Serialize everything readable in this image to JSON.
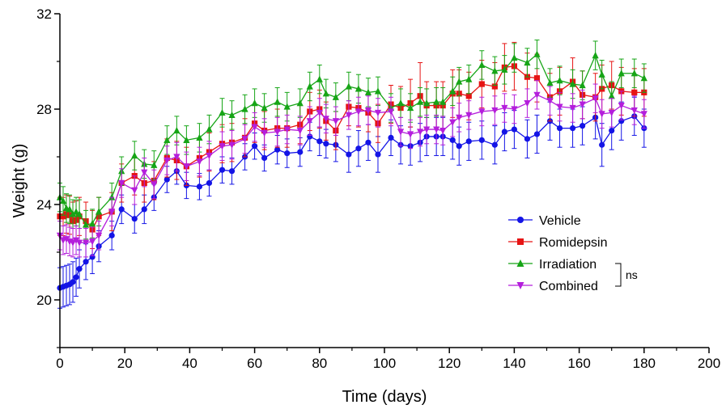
{
  "chart_data": {
    "type": "line",
    "xlabel": "Time (days)",
    "ylabel": "Weight (g)",
    "xlim": [
      0,
      200
    ],
    "ylim": [
      18,
      32
    ],
    "xticks": [
      0,
      20,
      40,
      60,
      80,
      100,
      120,
      140,
      160,
      180,
      200
    ],
    "yticks": [
      20,
      24,
      28,
      32
    ],
    "grid": false,
    "legend_position": "right",
    "annotation": "ns",
    "series": [
      {
        "name": "Vehicle",
        "color": "#1414e6",
        "marker": "circle",
        "x": [
          0,
          1,
          2,
          3,
          4,
          5,
          6,
          8,
          10,
          12,
          16,
          19,
          23,
          26,
          29,
          33,
          36,
          39,
          43,
          46,
          50,
          53,
          57,
          60,
          63,
          67,
          70,
          74,
          77,
          80,
          82,
          85,
          89,
          92,
          95,
          98,
          102,
          105,
          108,
          111,
          113,
          116,
          118,
          121,
          123,
          126,
          130,
          134,
          137,
          140,
          144,
          147,
          151,
          154,
          158,
          161,
          165,
          167,
          170,
          173,
          177,
          180
        ],
        "y": [
          20.5,
          20.55,
          20.6,
          20.65,
          20.75,
          20.95,
          21.3,
          21.6,
          21.8,
          22.25,
          22.7,
          23.8,
          23.4,
          23.8,
          24.3,
          25.05,
          25.4,
          24.8,
          24.75,
          24.9,
          25.45,
          25.4,
          26.0,
          26.45,
          25.95,
          26.3,
          26.15,
          26.2,
          26.85,
          26.65,
          26.55,
          26.5,
          26.1,
          26.35,
          26.6,
          26.1,
          26.8,
          26.5,
          26.45,
          26.6,
          26.85,
          26.85,
          26.85,
          26.7,
          26.45,
          26.65,
          26.7,
          26.5,
          27.05,
          27.15,
          26.75,
          26.95,
          27.5,
          27.2,
          27.2,
          27.3,
          27.65,
          26.5,
          27.1,
          27.5,
          27.7,
          27.2
        ],
        "err": [
          0.85,
          0.85,
          0.85,
          0.85,
          0.85,
          0.8,
          0.8,
          0.75,
          0.7,
          0.65,
          0.6,
          0.6,
          0.6,
          0.6,
          0.55,
          0.55,
          0.55,
          0.55,
          0.55,
          0.55,
          0.55,
          0.55,
          0.55,
          0.55,
          0.55,
          0.6,
          0.6,
          0.6,
          0.6,
          0.6,
          0.6,
          0.7,
          0.75,
          0.75,
          0.75,
          0.75,
          0.75,
          0.8,
          0.8,
          0.8,
          0.8,
          0.8,
          0.8,
          0.8,
          0.8,
          0.8,
          0.8,
          0.8,
          0.8,
          0.8,
          0.8,
          0.8,
          0.8,
          0.8,
          0.8,
          0.8,
          0.9,
          0.9,
          0.8,
          0.8,
          0.8,
          0.8
        ]
      },
      {
        "name": "Romidepsin",
        "color": "#e61414",
        "marker": "square",
        "x": [
          0,
          1,
          2,
          3,
          4,
          5,
          6,
          8,
          10,
          12,
          16,
          19,
          23,
          26,
          29,
          33,
          36,
          39,
          43,
          46,
          50,
          53,
          57,
          60,
          63,
          67,
          70,
          74,
          77,
          80,
          82,
          85,
          89,
          92,
          95,
          98,
          102,
          105,
          108,
          111,
          113,
          116,
          118,
          121,
          123,
          126,
          130,
          134,
          137,
          140,
          144,
          147,
          151,
          154,
          158,
          161,
          165,
          167,
          170,
          173,
          177,
          180
        ],
        "y": [
          23.5,
          23.5,
          23.6,
          23.55,
          23.3,
          23.35,
          23.5,
          23.3,
          22.95,
          23.5,
          23.7,
          24.9,
          25.2,
          24.9,
          25.0,
          25.95,
          25.85,
          25.6,
          25.95,
          26.2,
          26.55,
          26.6,
          26.8,
          27.4,
          27.1,
          27.2,
          27.2,
          27.35,
          27.9,
          28.0,
          27.5,
          27.1,
          28.1,
          28.05,
          27.85,
          27.4,
          28.2,
          28.05,
          28.25,
          28.55,
          28.15,
          28.15,
          28.15,
          28.65,
          28.65,
          28.55,
          29.05,
          28.95,
          29.75,
          29.8,
          29.35,
          29.3,
          28.5,
          28.75,
          29.15,
          28.6,
          28.5,
          28.85,
          29.0,
          28.75,
          28.7,
          28.7
        ],
        "err": [
          0.8,
          0.8,
          0.8,
          0.8,
          0.8,
          0.8,
          0.8,
          0.8,
          0.8,
          0.8,
          0.8,
          0.8,
          0.8,
          0.8,
          0.8,
          0.8,
          0.8,
          0.8,
          0.8,
          0.8,
          0.8,
          0.8,
          0.8,
          0.8,
          0.8,
          0.8,
          0.8,
          0.8,
          0.8,
          0.8,
          0.8,
          0.8,
          0.8,
          0.8,
          0.8,
          0.8,
          0.8,
          0.9,
          1.0,
          1.4,
          1.0,
          1.0,
          1.0,
          1.0,
          1.0,
          1.0,
          1.0,
          1.0,
          1.0,
          1.0,
          1.0,
          1.0,
          1.0,
          1.0,
          1.0,
          1.0,
          1.0,
          1.0,
          1.0,
          1.0,
          1.0,
          1.0
        ]
      },
      {
        "name": "Irradiation",
        "color": "#16a516",
        "marker": "triangle-up",
        "x": [
          0,
          1,
          2,
          3,
          4,
          5,
          6,
          8,
          10,
          12,
          16,
          19,
          23,
          26,
          29,
          33,
          36,
          39,
          43,
          46,
          50,
          53,
          57,
          60,
          63,
          67,
          70,
          74,
          77,
          80,
          82,
          85,
          89,
          92,
          95,
          98,
          102,
          105,
          108,
          111,
          113,
          116,
          118,
          121,
          123,
          126,
          130,
          134,
          137,
          140,
          144,
          147,
          151,
          154,
          158,
          161,
          165,
          167,
          170,
          173,
          177,
          180
        ],
        "y": [
          24.3,
          24.15,
          23.85,
          23.8,
          23.6,
          23.7,
          23.6,
          23.15,
          23.2,
          23.7,
          24.3,
          25.4,
          26.05,
          25.7,
          25.65,
          26.7,
          27.1,
          26.7,
          26.8,
          27.15,
          27.85,
          27.75,
          28.0,
          28.25,
          28.05,
          28.3,
          28.1,
          28.25,
          28.95,
          29.25,
          28.65,
          28.5,
          28.95,
          28.85,
          28.7,
          28.75,
          28.05,
          28.25,
          28.05,
          28.3,
          28.25,
          28.3,
          28.3,
          28.75,
          29.15,
          29.25,
          29.85,
          29.6,
          29.65,
          30.15,
          29.95,
          30.3,
          29.1,
          29.2,
          29.05,
          29.0,
          30.25,
          29.45,
          28.55,
          29.5,
          29.5,
          29.3
        ]
      },
      {
        "name": "Combined",
        "color": "#b41edc",
        "marker": "triangle-down",
        "x": [
          0,
          1,
          2,
          3,
          4,
          5,
          6,
          8,
          10,
          12,
          16,
          19,
          23,
          26,
          29,
          33,
          36,
          39,
          43,
          46,
          50,
          53,
          57,
          60,
          63,
          67,
          70,
          74,
          77,
          80,
          82,
          85,
          89,
          92,
          95,
          98,
          102,
          105,
          108,
          111,
          113,
          116,
          118,
          121,
          123,
          126,
          130,
          134,
          137,
          140,
          144,
          147,
          151,
          154,
          158,
          161,
          165,
          167,
          170,
          173,
          177,
          180
        ],
        "y": [
          22.7,
          22.5,
          22.55,
          22.45,
          22.4,
          22.5,
          22.4,
          22.4,
          22.45,
          22.7,
          23.7,
          24.9,
          24.6,
          25.35,
          24.85,
          25.85,
          26.0,
          25.6,
          25.8,
          26.05,
          26.45,
          26.5,
          26.75,
          27.25,
          27.0,
          27.05,
          27.15,
          27.1,
          27.5,
          27.85,
          27.6,
          27.5,
          27.75,
          27.9,
          27.95,
          27.85,
          27.9,
          27.05,
          26.95,
          27.05,
          27.15,
          27.15,
          27.1,
          27.45,
          27.65,
          27.75,
          27.9,
          27.95,
          28.05,
          28.0,
          28.25,
          28.6,
          28.35,
          28.1,
          28.05,
          28.2,
          28.45,
          27.8,
          27.85,
          28.15,
          27.95,
          27.8
        ]
      }
    ],
    "stat_bracket": {
      "series": [
        "Irradiation",
        "Combined"
      ],
      "label": "ns"
    }
  }
}
